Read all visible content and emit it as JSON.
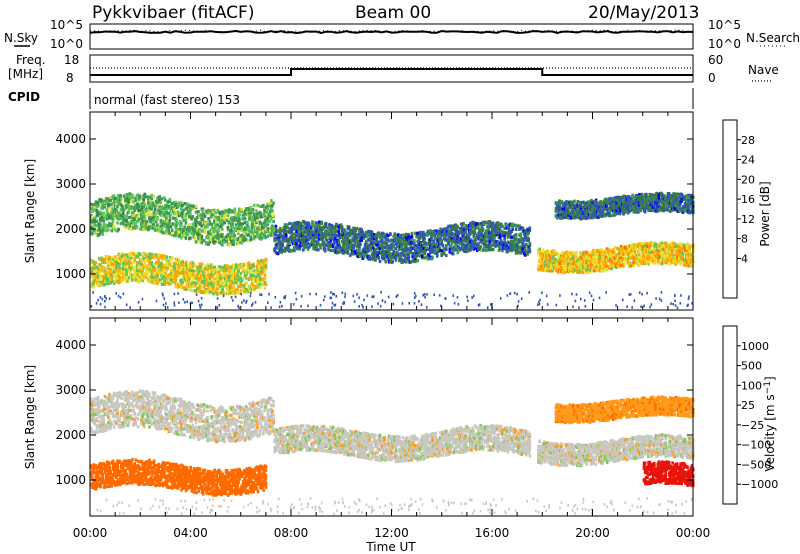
{
  "header": {
    "title": "Pykkvibaer (fitACF)",
    "beam": "Beam 00",
    "date": "20/May/2013"
  },
  "top_panels": {
    "nsky_label": "N.Sky",
    "nsearch_label": "N.Search",
    "noise_ticks": [
      "10^5",
      "10^0"
    ],
    "freq_label_line1": "Freq.",
    "freq_label_line2": "[MHz]",
    "freq_ticks": [
      "18",
      "8"
    ],
    "nave_label": "Nave",
    "nave_ticks": [
      "60",
      "0"
    ],
    "cpid_label": "CPID",
    "cpid_value": "normal (fast stereo) 153"
  },
  "chart_data": [
    {
      "type": "heatmap",
      "name": "power",
      "ylabel": "Slant Range [km]",
      "xlabel": "Time UT",
      "ylim": [
        200,
        4600
      ],
      "yticks": [
        "4000",
        "3000",
        "2000",
        "1000"
      ],
      "xticks": [
        "00:00",
        "04:00",
        "08:00",
        "12:00",
        "16:00",
        "20:00",
        "00:00"
      ],
      "colorbar": {
        "label": "Power [dB]",
        "levels": [
          "28",
          "24",
          "20",
          "16",
          "12",
          "8",
          "4"
        ],
        "colors": [
          "#0000ff",
          "#2f56b0",
          "#3e7f3e",
          "#3c9b5c",
          "#5ec45a",
          "#e8e030",
          "#ffa500",
          "#ff6a00",
          "#ff1a00"
        ]
      },
      "echo_bands": [
        {
          "t_start": 0.0,
          "t_end": 7.3,
          "range_center": 2200,
          "range_width": 500,
          "level": 16
        },
        {
          "t_start": 7.3,
          "t_end": 17.5,
          "range_center": 1700,
          "range_width": 400,
          "level": 8
        },
        {
          "t_start": 0.0,
          "t_end": 7.0,
          "range_center": 1000,
          "range_width": 400,
          "level": 22
        },
        {
          "t_start": 17.8,
          "t_end": 24.0,
          "range_center": 1350,
          "range_width": 300,
          "level": 24
        },
        {
          "t_start": 18.5,
          "t_end": 24.0,
          "range_center": 2500,
          "range_width": 250,
          "level": 8
        }
      ]
    },
    {
      "type": "heatmap",
      "name": "velocity",
      "ylabel": "Slant Range [km]",
      "xlabel": "Time UT",
      "ylim": [
        200,
        4600
      ],
      "yticks": [
        "4000",
        "3000",
        "2000",
        "1000"
      ],
      "xticks": [
        "00:00",
        "04:00",
        "08:00",
        "12:00",
        "16:00",
        "20:00",
        "00:00"
      ],
      "colorbar": {
        "label": "Velocity [m s^-1]",
        "levels": [
          "1000",
          "500",
          "100",
          "25",
          "−25",
          "−100",
          "−500",
          "−1000"
        ],
        "colors": [
          "#1e3fb4",
          "#3a6cb4",
          "#2e8a4a",
          "#7fc94f",
          "#c8c8c0",
          "#c8c8c0",
          "#ff9a1a",
          "#ff6a00",
          "#e8140c"
        ]
      },
      "echo_bands": [
        {
          "t_start": 0.0,
          "t_end": 7.3,
          "range_center": 2400,
          "range_width": 500,
          "level": 0
        },
        {
          "t_start": 7.3,
          "t_end": 17.5,
          "range_center": 1800,
          "range_width": 350,
          "level": 0
        },
        {
          "t_start": 0.0,
          "t_end": 7.0,
          "range_center": 1050,
          "range_width": 350,
          "level": -300
        },
        {
          "t_start": 17.8,
          "t_end": 24.0,
          "range_center": 1650,
          "range_width": 300,
          "level": 0
        },
        {
          "t_start": 18.5,
          "t_end": 24.0,
          "range_center": 2550,
          "range_width": 250,
          "level": -80
        },
        {
          "t_start": 22.0,
          "t_end": 24.0,
          "range_center": 1050,
          "range_width": 300,
          "level": -600
        }
      ]
    }
  ]
}
